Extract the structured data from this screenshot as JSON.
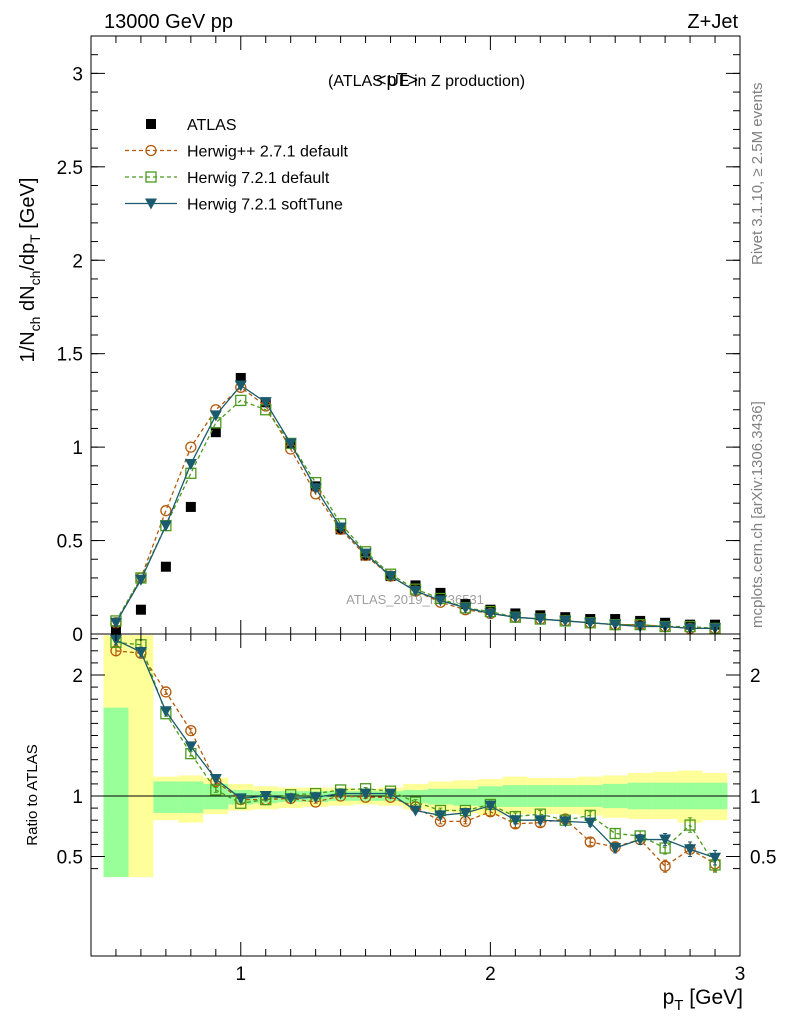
{
  "header": {
    "left": "13000 GeV pp",
    "right": "Z+Jet"
  },
  "side_text": {
    "top": "Rivet 3.1.10, ≥ 2.5M events",
    "bottom": "mcplots.cern.ch [arXiv:1306.3436]"
  },
  "chart_data": [
    {
      "panel": "main",
      "type": "scatter",
      "title": "<pT>",
      "subtitle": "(ATLAS UE in Z production)",
      "xlabel": "p_T [GeV]",
      "ylabel": "1/N_ch dN_ch/dp_T [GeV]",
      "watermark": "ATLAS_2019_I1736531",
      "xlim": [
        0.4,
        3.0
      ],
      "ylim": [
        0,
        3.2
      ],
      "yticks": [
        0,
        0.5,
        1,
        1.5,
        2,
        2.5,
        3
      ],
      "ytick_labels": [
        "0",
        "0.5",
        "1",
        "1.5",
        "2",
        "2.5",
        "3"
      ],
      "legend_position": "top-left",
      "x": [
        0.5,
        0.6,
        0.7,
        0.8,
        0.9,
        1.0,
        1.1,
        1.2,
        1.3,
        1.4,
        1.5,
        1.6,
        1.7,
        1.8,
        1.9,
        2.0,
        2.1,
        2.2,
        2.3,
        2.4,
        2.5,
        2.6,
        2.7,
        2.8,
        2.9
      ],
      "series": [
        {
          "name": "ATLAS",
          "color": "#000000",
          "marker": "filled-square",
          "line": "none",
          "values": [
            0.02,
            0.13,
            0.36,
            0.68,
            1.08,
            1.37,
            1.24,
            1.02,
            0.79,
            0.56,
            0.42,
            0.31,
            0.26,
            0.22,
            0.16,
            0.13,
            0.11,
            0.1,
            0.09,
            0.08,
            0.08,
            0.07,
            0.06,
            0.05,
            0.05
          ]
        },
        {
          "name": "Herwig++ 2.7.1 default",
          "color": "#b25a0a",
          "marker": "open-circle",
          "line": "dashed",
          "values": [
            0.06,
            0.3,
            0.66,
            1.0,
            1.2,
            1.32,
            1.22,
            0.99,
            0.75,
            0.56,
            0.42,
            0.31,
            0.23,
            0.17,
            0.13,
            0.11,
            0.09,
            0.08,
            0.07,
            0.06,
            0.05,
            0.05,
            0.04,
            0.03,
            0.03
          ]
        },
        {
          "name": "Herwig 7.2.1 default",
          "color": "#4b9a1c",
          "marker": "open-square",
          "line": "dashed",
          "values": [
            0.07,
            0.3,
            0.58,
            0.86,
            1.13,
            1.25,
            1.2,
            1.02,
            0.81,
            0.59,
            0.44,
            0.32,
            0.24,
            0.19,
            0.14,
            0.12,
            0.09,
            0.08,
            0.07,
            0.06,
            0.05,
            0.05,
            0.04,
            0.04,
            0.03
          ]
        },
        {
          "name": "Herwig 7.2.1 softTune",
          "color": "#1b5b6e",
          "marker": "filled-triangle-down",
          "line": "solid",
          "values": [
            0.06,
            0.29,
            0.58,
            0.91,
            1.17,
            1.33,
            1.24,
            1.02,
            0.78,
            0.57,
            0.43,
            0.31,
            0.23,
            0.18,
            0.14,
            0.11,
            0.09,
            0.08,
            0.07,
            0.06,
            0.05,
            0.04,
            0.04,
            0.03,
            0.03
          ]
        }
      ]
    },
    {
      "panel": "ratio",
      "type": "line",
      "ylabel": "Ratio to ATLAS",
      "xlabel": "p_T [GeV]",
      "xlim": [
        0.4,
        3.0
      ],
      "ylim": [
        0.33,
        2.33
      ],
      "xticks": [
        1,
        2,
        3
      ],
      "xtick_labels": [
        "1",
        "2",
        "3"
      ],
      "yticks": [
        0.5,
        1,
        2
      ],
      "ytick_labels": [
        "0.5",
        "1",
        "2"
      ],
      "reference_line": 1,
      "x": [
        0.5,
        0.6,
        0.7,
        0.8,
        0.9,
        1.0,
        1.1,
        1.2,
        1.3,
        1.4,
        1.5,
        1.6,
        1.7,
        1.8,
        1.9,
        2.0,
        2.1,
        2.2,
        2.3,
        2.4,
        2.5,
        2.6,
        2.7,
        2.8,
        2.9
      ],
      "bands": {
        "yellow": {
          "color": "#ffff99",
          "lower": [
            0.33,
            0.33,
            0.8,
            0.78,
            0.85,
            0.88,
            0.89,
            0.9,
            0.91,
            0.92,
            0.93,
            0.92,
            0.89,
            0.87,
            0.86,
            0.84,
            0.85,
            0.85,
            0.85,
            0.84,
            0.82,
            0.81,
            0.81,
            0.78,
            0.8
          ],
          "upper": [
            2.33,
            2.33,
            1.16,
            1.17,
            1.15,
            1.1,
            1.08,
            1.07,
            1.07,
            1.07,
            1.06,
            1.07,
            1.1,
            1.12,
            1.13,
            1.14,
            1.16,
            1.15,
            1.15,
            1.16,
            1.17,
            1.19,
            1.2,
            1.21,
            1.19
          ]
        },
        "green": {
          "color": "#99ff99",
          "lower": [
            0.33,
            0.33,
            0.86,
            0.86,
            0.89,
            0.93,
            0.94,
            0.95,
            0.95,
            0.96,
            0.96,
            0.96,
            0.94,
            0.93,
            0.92,
            0.91,
            0.91,
            0.91,
            0.91,
            0.91,
            0.9,
            0.89,
            0.89,
            0.89,
            0.89
          ],
          "upper": [
            1.73,
            0.33,
            1.12,
            1.12,
            1.1,
            1.05,
            1.04,
            1.04,
            1.04,
            1.04,
            1.04,
            1.04,
            1.05,
            1.06,
            1.06,
            1.08,
            1.09,
            1.09,
            1.09,
            1.09,
            1.1,
            1.11,
            1.11,
            1.11,
            1.11
          ]
        }
      },
      "series": [
        {
          "name": "Herwig++ 2.7.1 default",
          "color": "#b25a0a",
          "marker": "open-circle",
          "line": "dashed",
          "values": [
            2.2,
            2.18,
            1.86,
            1.54,
            1.12,
            0.97,
            0.97,
            0.98,
            0.95,
            1.0,
            0.99,
            0.99,
            0.91,
            0.79,
            0.79,
            0.87,
            0.77,
            0.78,
            0.81,
            0.62,
            0.58,
            0.64,
            0.42,
            0.56,
            0.44
          ],
          "errors": [
            0.04,
            0.04,
            0.02,
            0.02,
            0.02,
            0.01,
            0.01,
            0.01,
            0.01,
            0.01,
            0.01,
            0.01,
            0.02,
            0.02,
            0.02,
            0.03,
            0.03,
            0.03,
            0.03,
            0.03,
            0.04,
            0.04,
            0.05,
            0.06,
            0.06
          ]
        },
        {
          "name": "Herwig 7.2.1 default",
          "color": "#4b9a1c",
          "marker": "open-square",
          "line": "dashed",
          "values": [
            2.27,
            2.25,
            1.68,
            1.35,
            1.05,
            0.94,
            0.97,
            1.01,
            1.02,
            1.05,
            1.06,
            1.04,
            0.95,
            0.88,
            0.88,
            0.93,
            0.83,
            0.85,
            0.8,
            0.84,
            0.69,
            0.67,
            0.57,
            0.76,
            0.43
          ],
          "errors": [
            0.04,
            0.04,
            0.02,
            0.02,
            0.02,
            0.01,
            0.01,
            0.01,
            0.01,
            0.01,
            0.01,
            0.01,
            0.02,
            0.02,
            0.02,
            0.03,
            0.03,
            0.03,
            0.03,
            0.03,
            0.04,
            0.04,
            0.05,
            0.06,
            0.06
          ]
        },
        {
          "name": "Herwig 7.2.1 softTune",
          "color": "#1b5b6e",
          "marker": "filled-triangle-down",
          "line": "solid",
          "values": [
            2.29,
            2.19,
            1.7,
            1.41,
            1.14,
            0.98,
            1.0,
            0.98,
            0.99,
            1.02,
            1.02,
            1.02,
            0.88,
            0.84,
            0.86,
            0.92,
            0.8,
            0.8,
            0.79,
            0.78,
            0.57,
            0.64,
            0.64,
            0.56,
            0.49
          ],
          "errors": [
            0.04,
            0.04,
            0.02,
            0.02,
            0.02,
            0.01,
            0.01,
            0.01,
            0.01,
            0.01,
            0.01,
            0.01,
            0.02,
            0.02,
            0.02,
            0.03,
            0.03,
            0.03,
            0.03,
            0.03,
            0.04,
            0.04,
            0.05,
            0.06,
            0.06
          ]
        }
      ]
    }
  ]
}
